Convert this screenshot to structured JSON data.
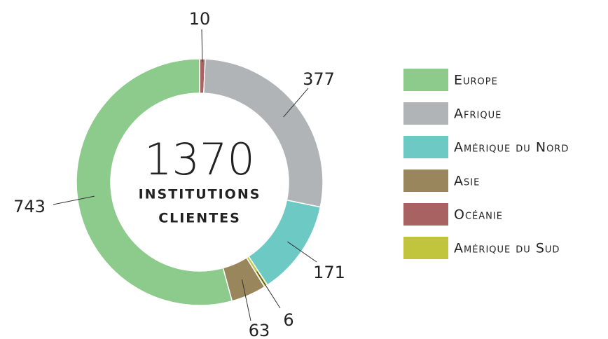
{
  "chart_data": {
    "type": "donut",
    "total": 1370,
    "center_label": [
      "INSTITUTIONS",
      "CLIENTES"
    ],
    "categories": [
      "Océanie",
      "Afrique",
      "Amérique du Nord",
      "Amérique du Sud",
      "Asie",
      "Europe"
    ],
    "values": [
      10,
      377,
      171,
      6,
      63,
      743
    ],
    "colors": [
      "#a86262",
      "#b1b4b6",
      "#6cc9c4",
      "#c1c53e",
      "#9a865d",
      "#8dcb8d"
    ],
    "legend": [
      "Europe",
      "Afrique",
      "Amérique du Nord",
      "Asie",
      "Océanie",
      "Amérique du Sud"
    ]
  }
}
